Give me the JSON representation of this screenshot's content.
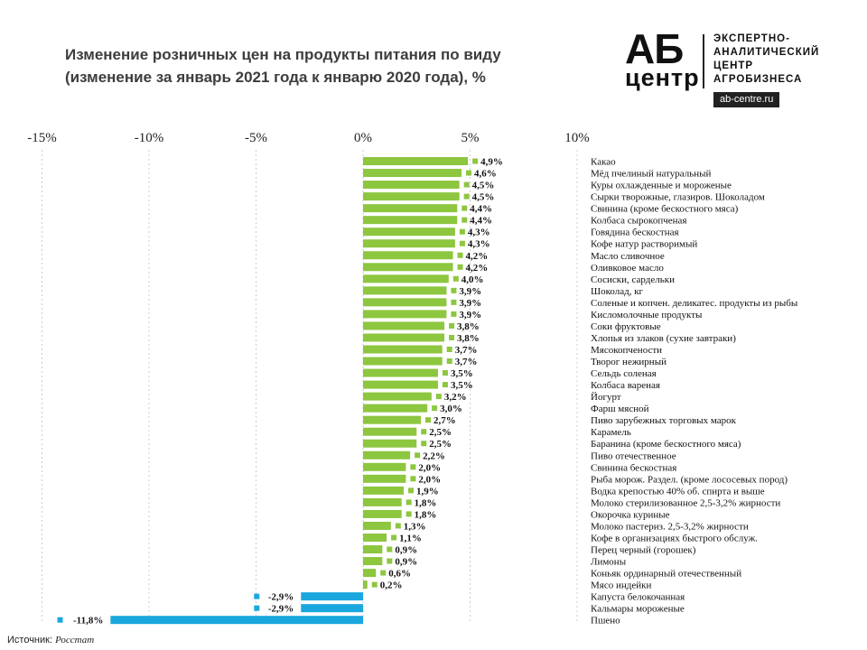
{
  "title_line1": "Изменение розничных цен на продукты питания по виду",
  "title_line2": "(изменение за январь 2021 года к январю 2020 года), %",
  "logo": {
    "mark_top": "АБ",
    "mark_bottom": "центр",
    "desc_lines": [
      "ЭКСПЕРТНО-",
      "АНАЛИТИЧЕСКИЙ",
      "ЦЕНТР",
      "АГРОБИЗНЕСА"
    ],
    "url": "ab-centre.ru"
  },
  "source_label": "Источник:",
  "source_name": "Росстат",
  "colors": {
    "positive": "#8dc63f",
    "negative": "#1aa7dd",
    "label_text": "#111111",
    "grid": "#cccccc"
  },
  "chart_data": {
    "type": "bar",
    "orientation": "horizontal",
    "title": "Изменение розничных цен на продукты питания по виду (изменение за январь 2021 года к январю 2020 года), %",
    "xlim": [
      -15,
      10
    ],
    "ticks": [
      -15,
      -10,
      -5,
      0,
      5,
      10
    ],
    "tick_labels": [
      "-15%",
      "-10%",
      "-5%",
      "0%",
      "5%",
      "10%"
    ],
    "categories": [
      "Какао",
      "Мёд пчелиный натуральный",
      "Куры охлажденные  и мороженые",
      "Сырки творожные, глазиров. Шоколадом",
      "Свинина (кроме бескостного мяса)",
      "Колбаса сырокопченая",
      "Говядина бескостная",
      "Кофе натур растворимый",
      "Масло сливочное",
      "Оливковое масло",
      "Сосиски, сардельки",
      "Шоколад, кг",
      "Соленые и копчен. деликатес. продукты из рыбы",
      "Кисломолочные продукты",
      "Соки фруктовые",
      "Хлопья из злаков (сухие завтраки)",
      "Мясокопчености",
      "Творог нежирный",
      "Сельдь соленая",
      "Колбаса вареная",
      "Йогурт",
      "Фарш мясной",
      "Пиво зарубежных торговых марок",
      "Карамель",
      "Баранина (кроме бескостного мяса)",
      "Пиво отечественное",
      "Свинина бескостная",
      "Рыба морож. Раздел. (кроме лососевых пород)",
      "Водка крепостью 40% об. спирта и выше",
      "Молоко стерилизованное  2,5-3,2%  жирности",
      "Окорочка куриные",
      "Молоко пастериз. 2,5-3,2%  жирности",
      "Кофе в организациях быстрого обслуж.",
      "Перец черный (горошек)",
      "Лимоны",
      "Коньяк ординарный отечественный",
      "Мясо индейки",
      "Капуста белокочанная",
      "Кальмары мороженые",
      "Пшено"
    ],
    "values": [
      4.9,
      4.6,
      4.5,
      4.5,
      4.4,
      4.4,
      4.3,
      4.3,
      4.2,
      4.2,
      4.0,
      3.9,
      3.9,
      3.9,
      3.8,
      3.8,
      3.7,
      3.7,
      3.5,
      3.5,
      3.2,
      3.0,
      2.7,
      2.5,
      2.5,
      2.2,
      2.0,
      2.0,
      1.9,
      1.8,
      1.8,
      1.3,
      1.1,
      0.9,
      0.9,
      0.6,
      0.2,
      -2.9,
      -2.9,
      -11.8
    ],
    "value_labels": [
      "4,9%",
      "4,6%",
      "4,5%",
      "4,5%",
      "4,4%",
      "4,4%",
      "4,3%",
      "4,3%",
      "4,2%",
      "4,2%",
      "4,0%",
      "3,9%",
      "3,9%",
      "3,9%",
      "3,8%",
      "3,8%",
      "3,7%",
      "3,7%",
      "3,5%",
      "3,5%",
      "3,2%",
      "3,0%",
      "2,7%",
      "2,5%",
      "2,5%",
      "2,2%",
      "2,0%",
      "2,0%",
      "1,9%",
      "1,8%",
      "1,8%",
      "1,3%",
      "1,1%",
      "0,9%",
      "0,9%",
      "0,6%",
      "0,2%",
      "-2,9%",
      "-2,9%",
      "-11,8%"
    ]
  }
}
